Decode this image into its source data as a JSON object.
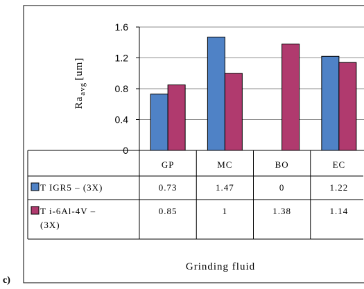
{
  "panel_label": "c)",
  "chart_data": {
    "type": "bar",
    "categories": [
      "GP",
      "MC",
      "BO",
      "EC"
    ],
    "series": [
      {
        "name": "T IGR5 – (3X)",
        "values": [
          0.73,
          1.47,
          0,
          1.22
        ],
        "value_labels": [
          "0.73",
          "1.47",
          "0",
          "1.22"
        ],
        "color": "#4f82c6"
      },
      {
        "name": "T i-6Al-4V – (3X)",
        "name_lines": [
          "T i-6Al-4V –",
          "(3X)"
        ],
        "values": [
          0.85,
          1,
          1.38,
          1.14
        ],
        "value_labels": [
          "0.85",
          "1",
          "1.38",
          "1.14"
        ],
        "color": "#b03a6e"
      }
    ],
    "ylabel_main": "Ra",
    "ylabel_sub": "avg",
    "ylabel_unit": "[um]",
    "xlabel": "Grinding fluid",
    "ylim": [
      0,
      1.6
    ],
    "yticks": [
      "0",
      "0.4",
      "0.8",
      "1.2",
      "1.6"
    ],
    "grid": true,
    "legend": "data-table-left"
  }
}
